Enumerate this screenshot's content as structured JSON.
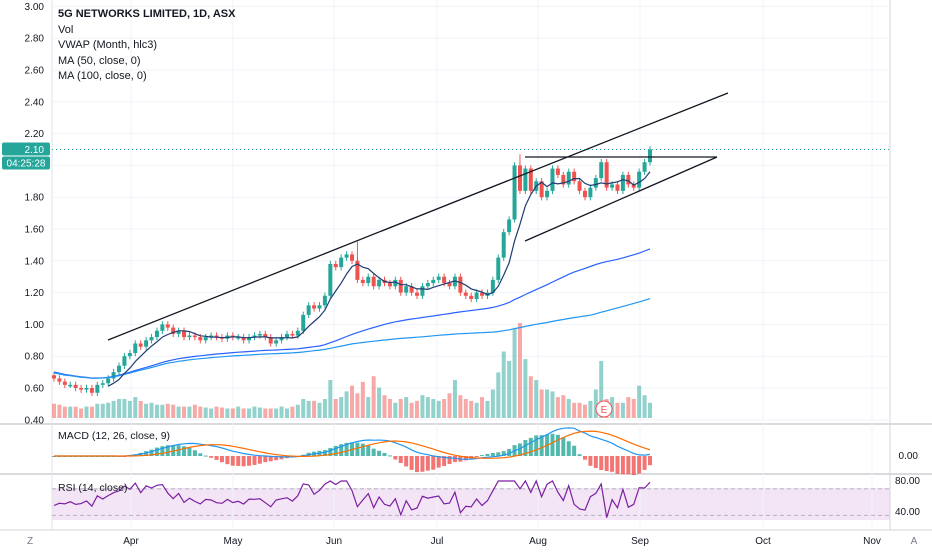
{
  "legend": {
    "title": "5G NETWORKS LIMITED, 1D, ASX",
    "vol": "Vol",
    "vwap": "VWAP (Month, hlc3)",
    "ma50": "MA (50, close, 0)",
    "ma100": "MA (100, close, 0)"
  },
  "macd_label": "MACD (12, 26, close, 9)",
  "rsi_label": "RSI (14, close)",
  "price_badge": "2.10",
  "countdown_badge": "04:25:28",
  "earnings_marker": "E",
  "corner_left": "Z",
  "corner_right": "A",
  "colors": {
    "up": "#26a69a",
    "down": "#ef5350",
    "ma50": "#2962ff",
    "ma100": "#2196f3",
    "vwap": "#1e3c72",
    "macd": "#2196f3",
    "signal": "#ff6d00",
    "rsi": "#7b1fa2",
    "rsi_band": "#f3e5f5",
    "badge": "#26a69a"
  },
  "chart_data": [
    {
      "type": "candlestick",
      "title": "5G NETWORKS LIMITED, 1D, ASX",
      "x_ticks": [
        "Apr",
        "May",
        "Jun",
        "Jul",
        "Aug",
        "Sep",
        "Oct",
        "Nov"
      ],
      "y_ticks": [
        "3.00",
        "2.80",
        "2.60",
        "2.40",
        "2.20",
        "2.00",
        "1.80",
        "1.60",
        "1.40",
        "1.20",
        "1.00",
        "0.80",
        "0.60",
        "0.40"
      ],
      "ylim": [
        0.38,
        3.04
      ],
      "last_price": 2.1,
      "candle_close": [
        0.66,
        0.64,
        0.62,
        0.62,
        0.6,
        0.59,
        0.6,
        0.57,
        0.62,
        0.63,
        0.66,
        0.7,
        0.74,
        0.8,
        0.82,
        0.88,
        0.86,
        0.9,
        0.92,
        0.96,
        1.0,
        0.98,
        0.94,
        0.96,
        0.92,
        0.93,
        0.92,
        0.9,
        0.92,
        0.93,
        0.92,
        0.91,
        0.93,
        0.92,
        0.92,
        0.9,
        0.92,
        0.93,
        0.94,
        0.92,
        0.88,
        0.9,
        0.92,
        0.94,
        0.93,
        0.96,
        1.06,
        1.12,
        1.1,
        1.12,
        1.18,
        1.38,
        1.36,
        1.42,
        1.44,
        1.4,
        1.28,
        1.26,
        1.3,
        1.24,
        1.28,
        1.26,
        1.24,
        1.28,
        1.2,
        1.24,
        1.2,
        1.18,
        1.24,
        1.26,
        1.28,
        1.3,
        1.26,
        1.24,
        1.3,
        1.2,
        1.18,
        1.16,
        1.2,
        1.18,
        1.2,
        1.28,
        1.42,
        1.58,
        1.66,
        2.0,
        1.84,
        1.98,
        1.84,
        1.9,
        1.8,
        1.84,
        1.98,
        1.94,
        1.88,
        1.96,
        1.9,
        1.84,
        1.8,
        1.86,
        1.92,
        2.02,
        1.86,
        1.88,
        1.84,
        1.94,
        1.88,
        1.86,
        1.96,
        2.02,
        2.1
      ],
      "volume_ratio": [
        0.15,
        0.14,
        0.12,
        0.12,
        0.12,
        0.1,
        0.12,
        0.12,
        0.15,
        0.15,
        0.16,
        0.18,
        0.2,
        0.2,
        0.18,
        0.22,
        0.18,
        0.15,
        0.16,
        0.14,
        0.14,
        0.15,
        0.14,
        0.12,
        0.12,
        0.12,
        0.14,
        0.12,
        0.11,
        0.1,
        0.12,
        0.11,
        0.1,
        0.1,
        0.12,
        0.1,
        0.1,
        0.12,
        0.11,
        0.1,
        0.1,
        0.1,
        0.12,
        0.1,
        0.12,
        0.14,
        0.2,
        0.18,
        0.18,
        0.16,
        0.2,
        0.4,
        0.2,
        0.22,
        0.28,
        0.34,
        0.26,
        0.38,
        0.22,
        0.44,
        0.32,
        0.24,
        0.2,
        0.16,
        0.2,
        0.22,
        0.16,
        0.18,
        0.24,
        0.22,
        0.2,
        0.18,
        0.2,
        0.26,
        0.4,
        0.24,
        0.2,
        0.18,
        0.16,
        0.22,
        0.18,
        0.3,
        0.48,
        0.7,
        0.6,
        0.94,
        1.0,
        0.62,
        0.44,
        0.4,
        0.3,
        0.3,
        0.28,
        0.22,
        0.24,
        0.2,
        0.16,
        0.16,
        0.14,
        0.18,
        0.3,
        0.6,
        0.2,
        0.22,
        0.16,
        0.16,
        0.22,
        0.2,
        0.34,
        0.24,
        0.16
      ]
    },
    {
      "type": "line",
      "title": "MACD (12, 26, close, 9)",
      "y_ticks": [
        "0.00"
      ],
      "series": [
        {
          "name": "MACD"
        },
        {
          "name": "Signal"
        },
        {
          "name": "Histogram"
        }
      ]
    },
    {
      "type": "line",
      "title": "RSI (14, close)",
      "y_ticks": [
        "80.00",
        "40.00"
      ],
      "band": [
        30,
        70
      ]
    }
  ]
}
